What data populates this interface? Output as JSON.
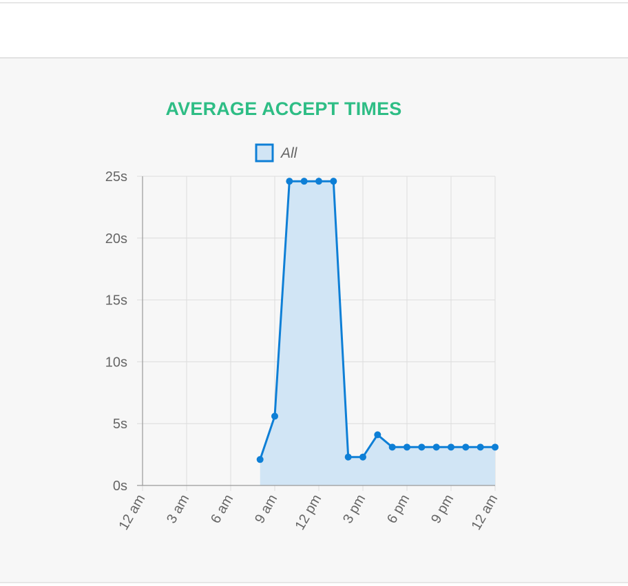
{
  "chart_data": {
    "type": "line",
    "title": "AVERAGE ACCEPT TIMES",
    "legend": {
      "entries": [
        "All"
      ],
      "placement": "top"
    },
    "x_tick_labels": [
      "12 am",
      "3 am",
      "6 am",
      "9 am",
      "12 pm",
      "3 pm",
      "6 pm",
      "9 pm",
      "12 am"
    ],
    "xlim": [
      0,
      24
    ],
    "y_tick_labels": [
      "0s",
      "5s",
      "10s",
      "15s",
      "20s",
      "25s"
    ],
    "y_ticks": [
      0,
      5,
      10,
      15,
      20,
      25
    ],
    "ylim": [
      0,
      25
    ],
    "grid": true,
    "fill": true,
    "series": [
      {
        "name": "All",
        "x": [
          8,
          9,
          10,
          11,
          12,
          13,
          14,
          15,
          16,
          17,
          18,
          19,
          20,
          21,
          22,
          23,
          24
        ],
        "values": [
          2.1,
          5.6,
          24.6,
          24.6,
          24.6,
          24.6,
          2.3,
          2.3,
          4.1,
          3.1,
          3.1,
          3.1,
          3.1,
          3.1,
          3.1,
          3.1,
          3.1
        ]
      }
    ],
    "colors": {
      "title": "#2ebd85",
      "line": "#0e7fd6",
      "fill": "#d1e5f5",
      "grid": "#dcdcdc",
      "axis": "#999999",
      "text": "#666666"
    }
  }
}
